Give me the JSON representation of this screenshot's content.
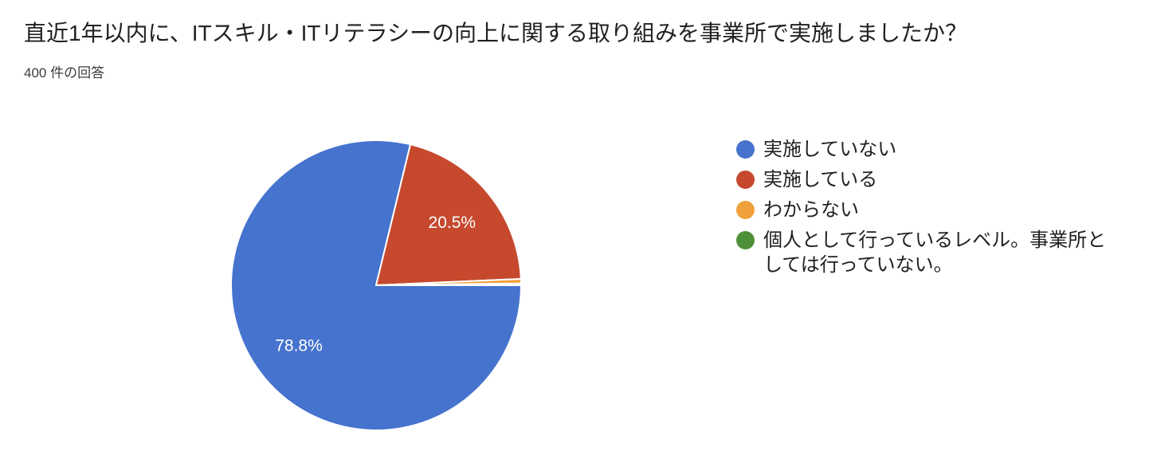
{
  "header": {
    "title": "直近1年以内に、ITスキル・ITリテラシーの向上に関する取り組みを事業所で実施しましたか？",
    "response_count": "400 件の回答"
  },
  "colors": {
    "background": "#ffffff",
    "title_text": "#212121",
    "subtitle_text": "#3c3c3c",
    "legend_text": "#212121",
    "slice_label_text": "#ffffff",
    "slice_border": "#ffffff"
  },
  "chart_data": {
    "type": "pie",
    "title": "直近1年以内に、ITスキル・ITリテラシーの向上に関する取り組みを事業所で実施しましたか？",
    "subtitle": "400 件の回答",
    "total_responses": 400,
    "legend_position": "right",
    "start_angle_deg_clockwise_from_top": 90,
    "direction": "clockwise",
    "label_radius_factor": 0.678,
    "slices": [
      {
        "label": "実施していない",
        "percent": 78.8,
        "display_label": "78.8%",
        "color": "#4573CE"
      },
      {
        "label": "実施している",
        "percent": 20.5,
        "display_label": "20.5%",
        "color": "#C6492E"
      },
      {
        "label": "わからない",
        "percent": 0.5,
        "display_label": "",
        "color": "#F0A13C"
      },
      {
        "label": "個人として行っているレベル。事業所としては行っていない。",
        "percent": 0.2,
        "display_label": "",
        "color": "#4E9039"
      }
    ]
  }
}
